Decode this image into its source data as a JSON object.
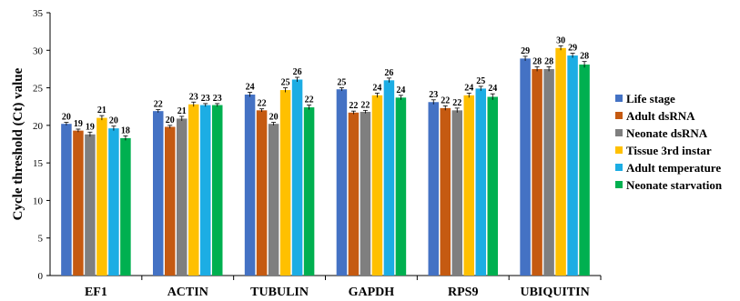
{
  "chart_data": {
    "type": "bar",
    "title": "",
    "xlabel": "",
    "ylabel": "Cycle threshold (Ct) value",
    "ylim": [
      0,
      35
    ],
    "yticks": [
      0,
      5,
      10,
      15,
      20,
      25,
      30,
      35
    ],
    "grid": false,
    "legend_position": "right",
    "categories": [
      "EF1",
      "ACTIN",
      "TUBULIN",
      "GAPDH",
      "RPS9",
      "UBIQUITIN"
    ],
    "series": [
      {
        "name": "Life stage",
        "color": "#4472C4",
        "values": [
          20.2,
          21.9,
          24.1,
          24.8,
          23.1,
          28.9
        ],
        "errors": [
          0.2,
          0.2,
          0.3,
          0.2,
          0.3,
          0.3
        ],
        "labels": [
          "20",
          "22",
          "24",
          "25",
          "23",
          "29"
        ]
      },
      {
        "name": "Adult dsRNA",
        "color": "#C55A11",
        "values": [
          19.3,
          19.8,
          22.0,
          21.7,
          22.3,
          27.5
        ],
        "errors": [
          0.2,
          0.2,
          0.2,
          0.2,
          0.3,
          0.3
        ],
        "labels": [
          "19",
          "20",
          "22",
          "22",
          "22",
          "28"
        ]
      },
      {
        "name": "Neonate dsRNA",
        "color": "#7F7F7F",
        "values": [
          18.8,
          20.9,
          20.2,
          21.8,
          22.0,
          27.5
        ],
        "errors": [
          0.3,
          0.3,
          0.2,
          0.2,
          0.3,
          0.3
        ],
        "labels": [
          "19",
          "21",
          "20",
          "22",
          "22",
          "28"
        ]
      },
      {
        "name": "Tissue 3rd instar",
        "color": "#FFC000",
        "values": [
          21.0,
          22.8,
          24.7,
          24.0,
          24.0,
          30.3
        ],
        "errors": [
          0.3,
          0.3,
          0.3,
          0.3,
          0.3,
          0.3
        ],
        "labels": [
          "21",
          "23",
          "25",
          "24",
          "24",
          "30"
        ]
      },
      {
        "name": "Adult temperature",
        "color": "#1CADE4",
        "values": [
          19.6,
          22.7,
          26.1,
          26.0,
          24.9,
          29.3
        ],
        "errors": [
          0.3,
          0.2,
          0.3,
          0.3,
          0.3,
          0.3
        ],
        "labels": [
          "20",
          "23",
          "26",
          "26",
          "25",
          "29"
        ]
      },
      {
        "name": "Neonate starvation",
        "color": "#00B050",
        "values": [
          18.3,
          22.7,
          22.4,
          23.7,
          23.8,
          28.1
        ],
        "errors": [
          0.3,
          0.2,
          0.3,
          0.3,
          0.4,
          0.4
        ],
        "labels": [
          "18",
          "23",
          "22",
          "24",
          "24",
          "28"
        ]
      }
    ]
  }
}
